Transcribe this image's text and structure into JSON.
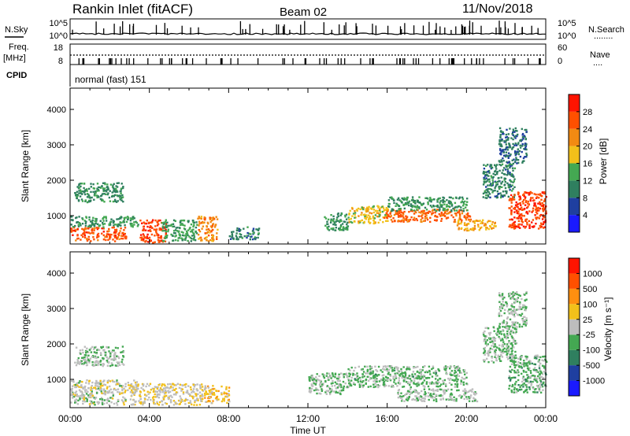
{
  "header": {
    "station": "Rankin Inlet (fitACF)",
    "beam": "Beam 02",
    "date": "11/Nov/2018"
  },
  "aux_panels": {
    "nsky": {
      "label": "N.Sky",
      "left_ticks": [
        "10^5",
        "10^0"
      ],
      "right_ticks": [
        "10^5",
        "10^0"
      ],
      "right_label": "N.Search",
      "right_legend": "........"
    },
    "freq": {
      "label_line1": "Freq.",
      "label_line2": "[MHz]",
      "left_ticks": [
        "18",
        "8"
      ],
      "right_ticks": [
        "60",
        "0"
      ],
      "right_label": "Nave",
      "right_legend": "...."
    },
    "cpid": {
      "label": "CPID",
      "mode_text": "normal (fast) 151"
    }
  },
  "colors": {
    "power": [
      "#1a1aff",
      "#1f3fa0",
      "#2f7f5f",
      "#44a852",
      "#f2c01a",
      "#f28a12",
      "#ff5000",
      "#ff1400"
    ],
    "velocity": [
      "#1a1aff",
      "#1f3fa0",
      "#2f7f5f",
      "#44a852",
      "#bdbdbd",
      "#f2c01a",
      "#ff8f10",
      "#ff5000",
      "#ff1400"
    ]
  },
  "chart_data": [
    {
      "type": "heatmap",
      "panel": "power",
      "xlabel": "",
      "ylabel": "Slant Range [km]",
      "xlim": [
        0,
        24
      ],
      "ylim": [
        200,
        4600
      ],
      "yticks": [
        1000,
        2000,
        3000,
        4000
      ],
      "colorbar": {
        "label": "Power [dB]",
        "ticks": [
          "4",
          "8",
          "12",
          "16",
          "20",
          "24",
          "28"
        ],
        "range": [
          0,
          32
        ]
      },
      "regions": [
        {
          "x": [
            0.0,
            2.8
          ],
          "y": [
            300,
            700
          ],
          "value": 26
        },
        {
          "x": [
            0.0,
            3.4
          ],
          "y": [
            700,
            1000
          ],
          "value": 12
        },
        {
          "x": [
            0.2,
            2.7
          ],
          "y": [
            1400,
            1950
          ],
          "value": 11
        },
        {
          "x": [
            3.5,
            4.8
          ],
          "y": [
            250,
            900
          ],
          "value": 27
        },
        {
          "x": [
            4.6,
            6.4
          ],
          "y": [
            300,
            900
          ],
          "value": 13
        },
        {
          "x": [
            6.4,
            7.4
          ],
          "y": [
            300,
            1000
          ],
          "value": 22
        },
        {
          "x": [
            8.0,
            9.5
          ],
          "y": [
            350,
            700
          ],
          "value": 10
        },
        {
          "x": [
            12.8,
            14.0
          ],
          "y": [
            600,
            1100
          ],
          "value": 12
        },
        {
          "x": [
            14.0,
            16.0
          ],
          "y": [
            800,
            1300
          ],
          "value": 18
        },
        {
          "x": [
            15.8,
            20.2
          ],
          "y": [
            850,
            1200
          ],
          "value": 25
        },
        {
          "x": [
            16.0,
            20.0
          ],
          "y": [
            1150,
            1550
          ],
          "value": 12
        },
        {
          "x": [
            19.5,
            21.5
          ],
          "y": [
            600,
            900
          ],
          "value": 20
        },
        {
          "x": [
            20.8,
            22.4
          ],
          "y": [
            1500,
            2500
          ],
          "value": 10
        },
        {
          "x": [
            21.6,
            23.0
          ],
          "y": [
            2500,
            3500
          ],
          "value": 9
        },
        {
          "x": [
            22.1,
            24.0
          ],
          "y": [
            650,
            1700
          ],
          "value": 27
        }
      ]
    },
    {
      "type": "heatmap",
      "panel": "velocity",
      "xlabel": "Time UT",
      "ylabel": "Slant Range [km]",
      "xlim": [
        0,
        24
      ],
      "ylim": [
        200,
        4600
      ],
      "xticks": [
        "00:00",
        "04:00",
        "08:00",
        "12:00",
        "16:00",
        "20:00",
        "00:00"
      ],
      "yticks": [
        1000,
        2000,
        3000,
        4000
      ],
      "colorbar": {
        "label": "Velocity [m s⁻¹]",
        "ticks": [
          "1000",
          "500",
          "100",
          "25",
          "-25",
          "-100",
          "-500",
          "-1000"
        ],
        "range": [
          -1500,
          1500
        ]
      },
      "regions": [
        {
          "x": [
            0.0,
            2.8
          ],
          "y": [
            300,
            700
          ],
          "value": 0
        },
        {
          "x": [
            0.0,
            3.4
          ],
          "y": [
            700,
            1000
          ],
          "value": 50
        },
        {
          "x": [
            0.2,
            2.7
          ],
          "y": [
            1400,
            1950
          ],
          "value": -150
        },
        {
          "x": [
            3.0,
            6.6
          ],
          "y": [
            300,
            900
          ],
          "value": 120
        },
        {
          "x": [
            6.6,
            8.0
          ],
          "y": [
            350,
            850
          ],
          "value": 300
        },
        {
          "x": [
            12.0,
            14.0
          ],
          "y": [
            600,
            1200
          ],
          "value": -200
        },
        {
          "x": [
            14.0,
            20.0
          ],
          "y": [
            800,
            1400
          ],
          "value": -250
        },
        {
          "x": [
            16.5,
            20.5
          ],
          "y": [
            400,
            750
          ],
          "value": -100
        },
        {
          "x": [
            20.8,
            22.5
          ],
          "y": [
            1500,
            2500
          ],
          "value": -200
        },
        {
          "x": [
            21.6,
            23.0
          ],
          "y": [
            2500,
            3500
          ],
          "value": -150
        },
        {
          "x": [
            22.1,
            24.0
          ],
          "y": [
            650,
            1700
          ],
          "value": -300
        }
      ]
    }
  ]
}
